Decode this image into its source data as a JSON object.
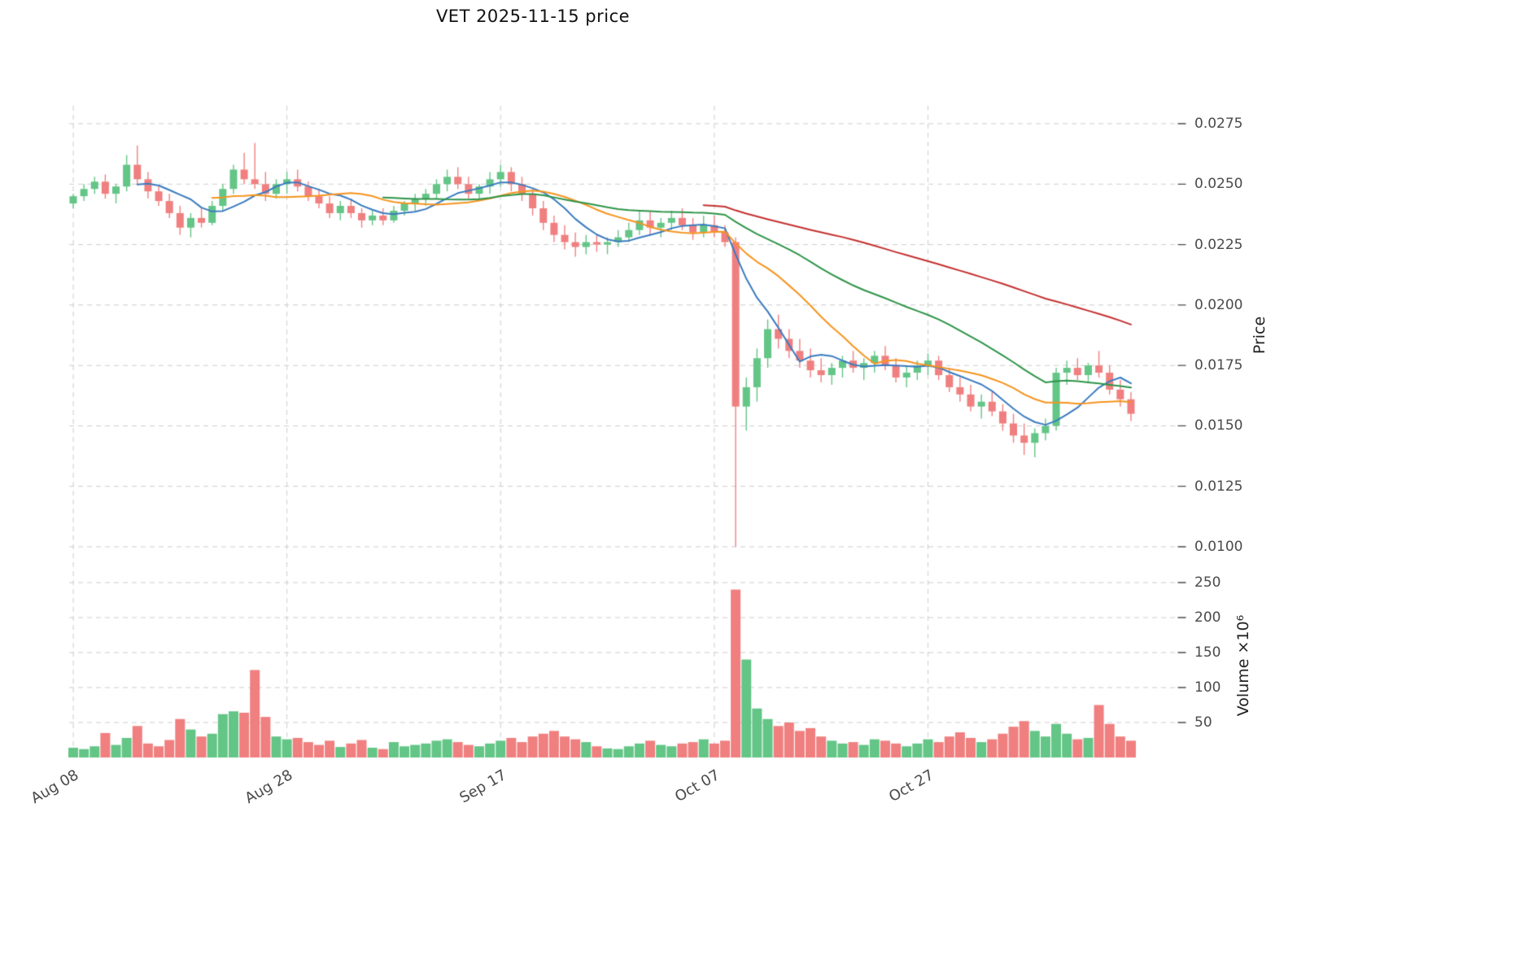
{
  "title": "VET  2025-11-15  price",
  "axes": {
    "price_label": "Price",
    "volume_label": "Volume ×10⁶",
    "price_ticks": [
      0.0275,
      0.025,
      0.0225,
      0.02,
      0.0175,
      0.015,
      0.0125,
      0.01
    ],
    "volume_ticks": [
      250,
      200,
      150,
      100,
      50
    ],
    "x_ticks": [
      {
        "label": "Aug 08",
        "day": 0
      },
      {
        "label": "Aug 28",
        "day": 20
      },
      {
        "label": "Sep 17",
        "day": 40
      },
      {
        "label": "Oct 07",
        "day": 60
      },
      {
        "label": "Oct 27",
        "day": 80
      }
    ]
  },
  "chart_data": {
    "type": "candlestick+volume",
    "symbol": "VET",
    "as_of_date": "2025-11-15",
    "price_range": [
      0.01,
      0.0275
    ],
    "volume_range_millions": [
      0,
      250
    ],
    "grid": true,
    "colors": {
      "up": "#63c586",
      "down": "#f07f7f",
      "grid": "#cccccc",
      "tick": "#4a4a4a"
    },
    "moving_averages": [
      {
        "name": "short-ma",
        "period": 7,
        "color": "#3a7bbf"
      },
      {
        "name": "mid-ma",
        "period": 14,
        "color": "#f5941f"
      },
      {
        "name": "long-ma",
        "period": 30,
        "color": "#2e9448"
      },
      {
        "name": "very-long-ma",
        "period": 60,
        "color": "#c53030"
      }
    ],
    "ohlc_columns": [
      "date",
      "open",
      "high",
      "low",
      "close",
      "volume_millions"
    ],
    "candles": [
      [
        "2025-08-08",
        0.0242,
        0.0246,
        0.024,
        0.0245,
        14
      ],
      [
        "2025-08-09",
        0.0245,
        0.025,
        0.0243,
        0.0248,
        12
      ],
      [
        "2025-08-10",
        0.0248,
        0.0253,
        0.0246,
        0.0251,
        16
      ],
      [
        "2025-08-11",
        0.0251,
        0.0254,
        0.0244,
        0.0246,
        35
      ],
      [
        "2025-08-12",
        0.0246,
        0.025,
        0.0242,
        0.0249,
        18
      ],
      [
        "2025-08-13",
        0.0249,
        0.0262,
        0.0247,
        0.0258,
        28
      ],
      [
        "2025-08-14",
        0.0258,
        0.0266,
        0.025,
        0.0252,
        45
      ],
      [
        "2025-08-15",
        0.0252,
        0.0255,
        0.0244,
        0.0247,
        20
      ],
      [
        "2025-08-16",
        0.0247,
        0.0249,
        0.0241,
        0.0243,
        16
      ],
      [
        "2025-08-17",
        0.0243,
        0.0246,
        0.0236,
        0.0238,
        25
      ],
      [
        "2025-08-18",
        0.0238,
        0.0241,
        0.0229,
        0.0232,
        55
      ],
      [
        "2025-08-19",
        0.0232,
        0.0238,
        0.0228,
        0.0236,
        40
      ],
      [
        "2025-08-20",
        0.0236,
        0.024,
        0.0232,
        0.0234,
        30
      ],
      [
        "2025-08-21",
        0.0234,
        0.0243,
        0.0233,
        0.0241,
        34
      ],
      [
        "2025-08-22",
        0.0241,
        0.025,
        0.0239,
        0.0248,
        62
      ],
      [
        "2025-08-23",
        0.0248,
        0.0258,
        0.0246,
        0.0256,
        66
      ],
      [
        "2025-08-24",
        0.0256,
        0.0263,
        0.025,
        0.0252,
        64
      ],
      [
        "2025-08-25",
        0.0252,
        0.0267,
        0.0248,
        0.025,
        125
      ],
      [
        "2025-08-26",
        0.025,
        0.0255,
        0.0243,
        0.0246,
        58
      ],
      [
        "2025-08-27",
        0.0246,
        0.0252,
        0.0244,
        0.025,
        30
      ],
      [
        "2025-08-28",
        0.025,
        0.0255,
        0.0246,
        0.0252,
        26
      ],
      [
        "2025-08-29",
        0.0252,
        0.0256,
        0.0247,
        0.0249,
        28
      ],
      [
        "2025-08-30",
        0.0249,
        0.0251,
        0.0243,
        0.0245,
        22
      ],
      [
        "2025-08-31",
        0.0245,
        0.0248,
        0.024,
        0.0242,
        18
      ],
      [
        "2025-09-01",
        0.0242,
        0.0245,
        0.0236,
        0.0238,
        24
      ],
      [
        "2025-09-02",
        0.0238,
        0.0243,
        0.0235,
        0.0241,
        15
      ],
      [
        "2025-09-03",
        0.0241,
        0.0244,
        0.0236,
        0.0238,
        20
      ],
      [
        "2025-09-04",
        0.0238,
        0.024,
        0.0232,
        0.0235,
        25
      ],
      [
        "2025-09-05",
        0.0235,
        0.0239,
        0.0233,
        0.0237,
        14
      ],
      [
        "2025-09-06",
        0.0237,
        0.024,
        0.0233,
        0.0235,
        12
      ],
      [
        "2025-09-07",
        0.0235,
        0.0241,
        0.0234,
        0.0239,
        22
      ],
      [
        "2025-09-08",
        0.0239,
        0.0243,
        0.0237,
        0.0242,
        16
      ],
      [
        "2025-09-09",
        0.0242,
        0.0246,
        0.0239,
        0.0244,
        18
      ],
      [
        "2025-09-10",
        0.0244,
        0.0248,
        0.0241,
        0.0246,
        20
      ],
      [
        "2025-09-11",
        0.0246,
        0.0252,
        0.0244,
        0.025,
        24
      ],
      [
        "2025-09-12",
        0.025,
        0.0256,
        0.0247,
        0.0253,
        26
      ],
      [
        "2025-09-13",
        0.0253,
        0.0257,
        0.0248,
        0.025,
        22
      ],
      [
        "2025-09-14",
        0.025,
        0.0253,
        0.0244,
        0.0246,
        18
      ],
      [
        "2025-09-15",
        0.0246,
        0.025,
        0.0243,
        0.0249,
        16
      ],
      [
        "2025-09-16",
        0.0249,
        0.0255,
        0.0246,
        0.0252,
        20
      ],
      [
        "2025-09-17",
        0.0252,
        0.0258,
        0.0249,
        0.0255,
        24
      ],
      [
        "2025-09-18",
        0.0255,
        0.0257,
        0.0247,
        0.025,
        28
      ],
      [
        "2025-09-19",
        0.025,
        0.0253,
        0.0243,
        0.0246,
        22
      ],
      [
        "2025-09-20",
        0.0246,
        0.0248,
        0.0237,
        0.024,
        30
      ],
      [
        "2025-09-21",
        0.024,
        0.0243,
        0.0231,
        0.0234,
        34
      ],
      [
        "2025-09-22",
        0.0234,
        0.0237,
        0.0226,
        0.0229,
        38
      ],
      [
        "2025-09-23",
        0.0229,
        0.0233,
        0.0223,
        0.0226,
        30
      ],
      [
        "2025-09-24",
        0.0226,
        0.023,
        0.022,
        0.0224,
        26
      ],
      [
        "2025-09-25",
        0.0224,
        0.0229,
        0.0221,
        0.0226,
        22
      ],
      [
        "2025-09-26",
        0.0226,
        0.0229,
        0.0222,
        0.0225,
        16
      ],
      [
        "2025-09-27",
        0.0225,
        0.0228,
        0.0221,
        0.0226,
        13
      ],
      [
        "2025-09-28",
        0.0226,
        0.0231,
        0.0224,
        0.0228,
        12
      ],
      [
        "2025-09-29",
        0.0228,
        0.0234,
        0.0226,
        0.0231,
        16
      ],
      [
        "2025-09-30",
        0.0231,
        0.0239,
        0.0229,
        0.0235,
        20
      ],
      [
        "2025-10-01",
        0.0235,
        0.0239,
        0.0229,
        0.0232,
        24
      ],
      [
        "2025-10-02",
        0.0232,
        0.0236,
        0.0228,
        0.0234,
        18
      ],
      [
        "2025-10-03",
        0.0234,
        0.0239,
        0.0231,
        0.0236,
        16
      ],
      [
        "2025-10-04",
        0.0236,
        0.024,
        0.0231,
        0.0233,
        20
      ],
      [
        "2025-10-05",
        0.0233,
        0.0236,
        0.0227,
        0.023,
        22
      ],
      [
        "2025-10-06",
        0.023,
        0.0237,
        0.0228,
        0.0233,
        26
      ],
      [
        "2025-10-07",
        0.0233,
        0.0237,
        0.0228,
        0.023,
        20
      ],
      [
        "2025-10-08",
        0.023,
        0.0233,
        0.0224,
        0.0226,
        24
      ],
      [
        "2025-10-09",
        0.0226,
        0.0228,
        0.01,
        0.0158,
        240
      ],
      [
        "2025-10-10",
        0.0158,
        0.017,
        0.0148,
        0.0166,
        140
      ],
      [
        "2025-10-11",
        0.0166,
        0.0182,
        0.016,
        0.0178,
        70
      ],
      [
        "2025-10-12",
        0.0178,
        0.0194,
        0.0174,
        0.019,
        55
      ],
      [
        "2025-10-13",
        0.019,
        0.0196,
        0.0182,
        0.0186,
        45
      ],
      [
        "2025-10-14",
        0.0186,
        0.019,
        0.0178,
        0.0181,
        50
      ],
      [
        "2025-10-15",
        0.0181,
        0.0186,
        0.0174,
        0.0177,
        38
      ],
      [
        "2025-10-16",
        0.0177,
        0.0182,
        0.017,
        0.0173,
        42
      ],
      [
        "2025-10-17",
        0.0173,
        0.0178,
        0.0168,
        0.0171,
        30
      ],
      [
        "2025-10-18",
        0.0171,
        0.0176,
        0.0167,
        0.0174,
        24
      ],
      [
        "2025-10-19",
        0.0174,
        0.0179,
        0.017,
        0.0177,
        20
      ],
      [
        "2025-10-20",
        0.0177,
        0.0181,
        0.0172,
        0.0174,
        22
      ],
      [
        "2025-10-21",
        0.0174,
        0.0178,
        0.0169,
        0.0176,
        18
      ],
      [
        "2025-10-22",
        0.0176,
        0.0181,
        0.0172,
        0.0179,
        26
      ],
      [
        "2025-10-23",
        0.0179,
        0.0183,
        0.0173,
        0.0175,
        24
      ],
      [
        "2025-10-24",
        0.0175,
        0.0178,
        0.0168,
        0.017,
        20
      ],
      [
        "2025-10-25",
        0.017,
        0.0175,
        0.0166,
        0.0172,
        16
      ],
      [
        "2025-10-26",
        0.0172,
        0.0177,
        0.0169,
        0.0175,
        20
      ],
      [
        "2025-10-27",
        0.0175,
        0.018,
        0.0171,
        0.0177,
        26
      ],
      [
        "2025-10-28",
        0.0177,
        0.0179,
        0.0169,
        0.0171,
        22
      ],
      [
        "2025-10-29",
        0.0171,
        0.0174,
        0.0164,
        0.0166,
        30
      ],
      [
        "2025-10-30",
        0.0166,
        0.017,
        0.016,
        0.0163,
        36
      ],
      [
        "2025-10-31",
        0.0163,
        0.0167,
        0.0156,
        0.0158,
        28
      ],
      [
        "2025-11-01",
        0.0158,
        0.0163,
        0.0153,
        0.016,
        22
      ],
      [
        "2025-11-02",
        0.016,
        0.0164,
        0.0154,
        0.0156,
        26
      ],
      [
        "2025-11-03",
        0.0156,
        0.0159,
        0.0148,
        0.0151,
        34
      ],
      [
        "2025-11-04",
        0.0151,
        0.0155,
        0.0143,
        0.0146,
        44
      ],
      [
        "2025-11-05",
        0.0146,
        0.0151,
        0.0138,
        0.0143,
        52
      ],
      [
        "2025-11-06",
        0.0143,
        0.0149,
        0.0137,
        0.0147,
        38
      ],
      [
        "2025-11-07",
        0.0147,
        0.0153,
        0.0144,
        0.015,
        30
      ],
      [
        "2025-11-08",
        0.015,
        0.0174,
        0.0148,
        0.0172,
        48
      ],
      [
        "2025-11-09",
        0.0172,
        0.0177,
        0.0167,
        0.0174,
        34
      ],
      [
        "2025-11-10",
        0.0174,
        0.0178,
        0.0169,
        0.0171,
        26
      ],
      [
        "2025-11-11",
        0.0171,
        0.0176,
        0.0168,
        0.0175,
        28
      ],
      [
        "2025-11-12",
        0.0175,
        0.0181,
        0.017,
        0.0172,
        75
      ],
      [
        "2025-11-13",
        0.0172,
        0.0175,
        0.0163,
        0.0165,
        48
      ],
      [
        "2025-11-14",
        0.0165,
        0.0169,
        0.0158,
        0.0161,
        30
      ],
      [
        "2025-11-15",
        0.0161,
        0.0164,
        0.0152,
        0.0155,
        24
      ]
    ]
  }
}
